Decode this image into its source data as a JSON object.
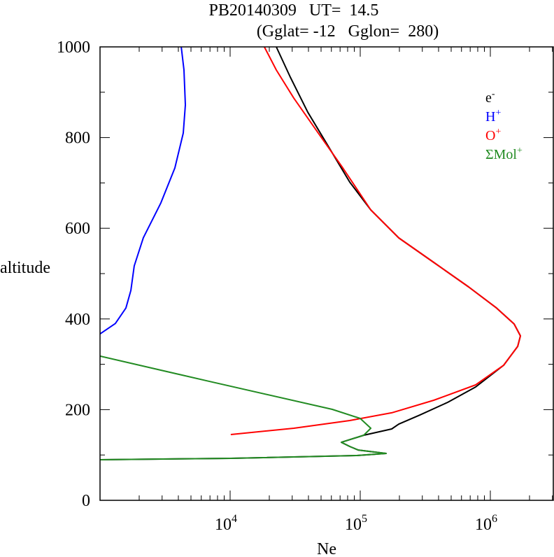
{
  "chart_data": {
    "type": "line",
    "title": "PB20140309   UT=  14.5",
    "subtitle": "(Gglat= -12   Gglon=  280)",
    "xlabel": "Ne",
    "ylabel": "altitude",
    "xscale": "log",
    "xlim": [
      1000,
      3100000
    ],
    "ylim": [
      0,
      1000
    ],
    "yticks": [
      "0",
      "200",
      "400",
      "600",
      "800",
      "1000"
    ],
    "ytick_values": [
      0,
      200,
      400,
      600,
      800,
      1000
    ],
    "xticks": [
      {
        "base": "10",
        "exp": "4",
        "value": 10000
      },
      {
        "base": "10",
        "exp": "5",
        "value": 100000
      },
      {
        "base": "10",
        "exp": "6",
        "value": 1000000
      }
    ],
    "legend_position": "top-right",
    "series": [
      {
        "name": "e",
        "sup": "-",
        "color": "#000000",
        "points_log10ne_alt": [
          [
            3.0,
            89.5
          ],
          [
            4.005,
            92.6
          ],
          [
            4.973,
            98.8
          ],
          [
            5.199,
            103.4
          ],
          [
            4.984,
            111
          ],
          [
            4.919,
            118.8
          ],
          [
            4.855,
            128
          ],
          [
            5.027,
            143.5
          ],
          [
            5.242,
            157.4
          ],
          [
            5.296,
            168
          ],
          [
            5.457,
            188
          ],
          [
            5.672,
            216
          ],
          [
            5.887,
            250
          ],
          [
            6.102,
            297.8
          ],
          [
            6.21,
            339.5
          ],
          [
            6.231,
            362.7
          ],
          [
            6.183,
            388.9
          ],
          [
            6.048,
            424
          ],
          [
            5.833,
            470.7
          ],
          [
            5.565,
            524.7
          ],
          [
            5.296,
            578.7
          ],
          [
            5.081,
            640.4
          ],
          [
            4.919,
            702
          ],
          [
            4.758,
            779
          ],
          [
            4.597,
            856
          ],
          [
            4.462,
            933.6
          ],
          [
            4.355,
            1000
          ]
        ]
      },
      {
        "name": "H",
        "sup": "+",
        "color": "#0000ff",
        "points_log10ne_alt": [
          [
            3.0,
            367
          ],
          [
            3.118,
            390
          ],
          [
            3.199,
            424
          ],
          [
            3.237,
            463
          ],
          [
            3.263,
            517
          ],
          [
            3.333,
            579
          ],
          [
            3.468,
            656
          ],
          [
            3.575,
            733
          ],
          [
            3.64,
            810
          ],
          [
            3.656,
            872
          ],
          [
            3.645,
            949
          ],
          [
            3.624,
            1000
          ]
        ]
      },
      {
        "name": "O",
        "sup": "+",
        "color": "#ff0000",
        "points_log10ne_alt": [
          [
            4.005,
            145
          ],
          [
            4.489,
            159
          ],
          [
            4.919,
            176
          ],
          [
            5.242,
            193
          ],
          [
            5.565,
            220.7
          ],
          [
            5.887,
            254.6
          ],
          [
            6.102,
            297.8
          ],
          [
            6.21,
            339.5
          ],
          [
            6.231,
            362.7
          ],
          [
            6.183,
            388.9
          ],
          [
            6.048,
            424
          ],
          [
            5.833,
            470.7
          ],
          [
            5.565,
            524.7
          ],
          [
            5.296,
            578.7
          ],
          [
            5.081,
            640.4
          ],
          [
            4.866,
            733
          ],
          [
            4.677,
            810
          ],
          [
            4.489,
            887
          ],
          [
            4.355,
            949
          ],
          [
            4.263,
            1000
          ]
        ]
      },
      {
        "name": "ΣMol",
        "sup": "+",
        "color": "#228b22",
        "points_log10ne_alt": [
          [
            3.0,
            318
          ],
          [
            3.844,
            262
          ],
          [
            4.785,
            200.6
          ],
          [
            5.0,
            180.6
          ],
          [
            5.081,
            159
          ],
          [
            5.027,
            143.5
          ],
          [
            4.855,
            128
          ],
          [
            4.919,
            118.8
          ],
          [
            4.984,
            111
          ],
          [
            5.199,
            103.4
          ],
          [
            4.973,
            98.8
          ],
          [
            4.005,
            92.6
          ],
          [
            3.0,
            89.5
          ]
        ]
      }
    ]
  }
}
